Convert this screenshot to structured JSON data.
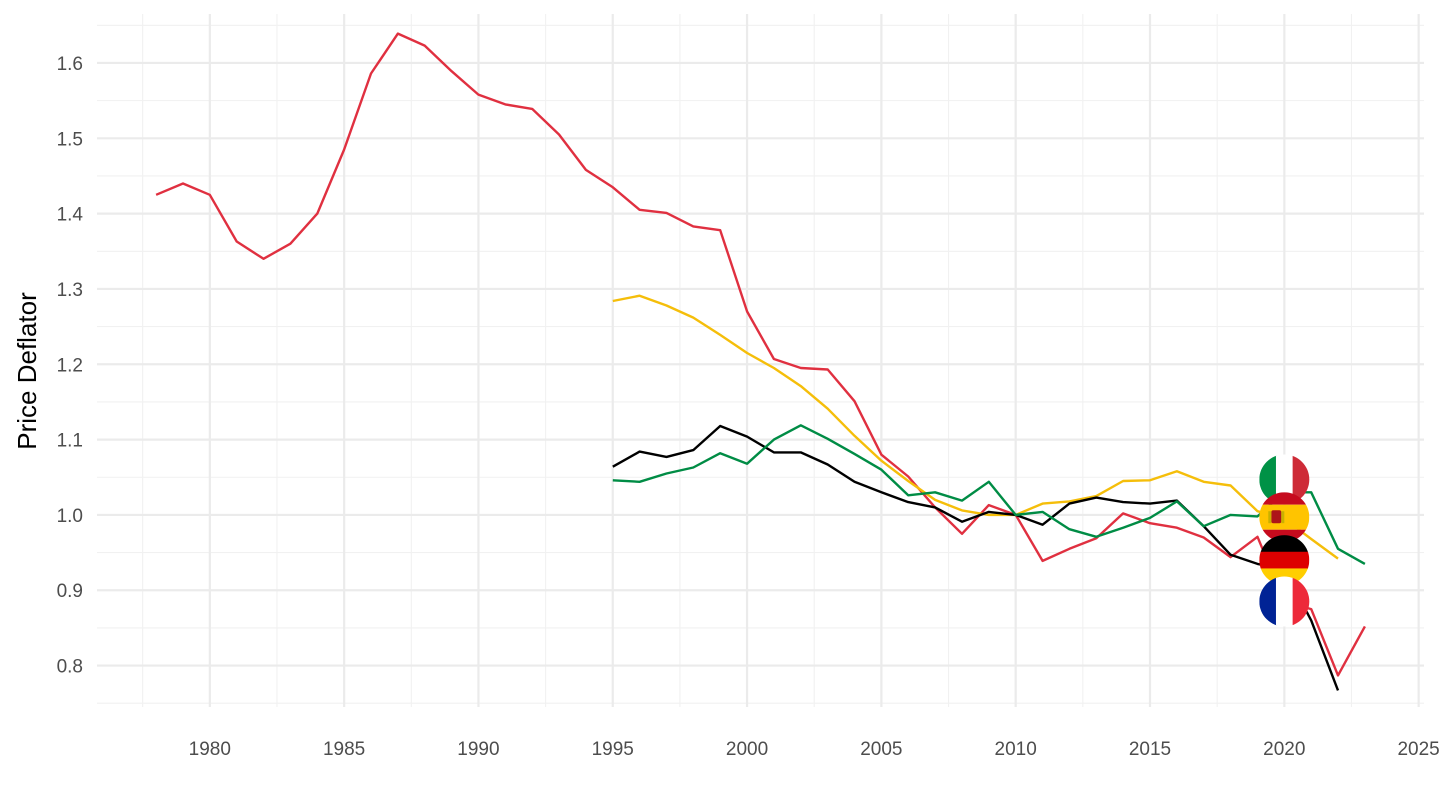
{
  "chart_data": {
    "type": "line",
    "title": "",
    "xlabel": "",
    "ylabel": "Price Deflator",
    "xlim": [
      1975.8,
      2025.2
    ],
    "ylim": [
      0.745,
      1.665
    ],
    "x_ticks": [
      1980,
      1985,
      1990,
      1995,
      2000,
      2005,
      2010,
      2015,
      2020,
      2025
    ],
    "x_tick_labels": [
      "1980",
      "1985",
      "1990",
      "1995",
      "2000",
      "2005",
      "2010",
      "2015",
      "2020",
      "2025"
    ],
    "y_ticks": [
      0.8,
      0.9,
      1.0,
      1.1,
      1.2,
      1.3,
      1.4,
      1.5,
      1.6
    ],
    "y_tick_labels": [
      "0.8",
      "0.9",
      "1.0",
      "1.1",
      "1.2",
      "1.3",
      "1.4",
      "1.5",
      "1.6"
    ],
    "grid": true,
    "legend": "flag icons placed at the end of each line near 2020",
    "series": [
      {
        "color": "#E03040",
        "flag": "france-flag",
        "x": [
          1978,
          1979,
          1980,
          1981,
          1982,
          1983,
          1984,
          1985,
          1986,
          1987,
          1988,
          1989,
          1990,
          1991,
          1992,
          1993,
          1994,
          1995,
          1996,
          1997,
          1998,
          1999,
          2000,
          2001,
          2002,
          2003,
          2004,
          2005,
          2006,
          2007,
          2008,
          2009,
          2010,
          2011,
          2012,
          2013,
          2014,
          2015,
          2016,
          2017,
          2018,
          2019,
          2020,
          2021,
          2022,
          2023
        ],
        "values": [
          1.425,
          1.44,
          1.425,
          1.363,
          1.34,
          1.36,
          1.4,
          1.485,
          1.586,
          1.639,
          1.623,
          1.589,
          1.558,
          1.545,
          1.539,
          1.505,
          1.458,
          1.435,
          1.405,
          1.401,
          1.383,
          1.378,
          1.27,
          1.207,
          1.195,
          1.193,
          1.151,
          1.08,
          1.051,
          1.01,
          0.975,
          1.013,
          1.0,
          0.939,
          0.955,
          0.969,
          1.002,
          0.989,
          0.983,
          0.97,
          0.944,
          0.971,
          0.885,
          0.875,
          0.787,
          0.852
        ]
      },
      {
        "color": "#F5BE0A",
        "flag": "spain-flag",
        "x": [
          1995,
          1996,
          1997,
          1998,
          1999,
          2000,
          2001,
          2002,
          2003,
          2004,
          2005,
          2006,
          2007,
          2008,
          2009,
          2010,
          2011,
          2012,
          2013,
          2014,
          2015,
          2016,
          2017,
          2018,
          2019,
          2020,
          2021,
          2022
        ],
        "values": [
          1.284,
          1.291,
          1.278,
          1.262,
          1.239,
          1.215,
          1.195,
          1.171,
          1.141,
          1.105,
          1.072,
          1.045,
          1.02,
          1.006,
          1.0,
          1.0,
          1.015,
          1.018,
          1.025,
          1.045,
          1.046,
          1.058,
          1.044,
          1.039,
          1.005,
          0.995,
          0.968,
          0.942
        ]
      },
      {
        "color": "#000000",
        "flag": "germany-flag",
        "x": [
          1995,
          1996,
          1997,
          1998,
          1999,
          2000,
          2001,
          2002,
          2003,
          2004,
          2005,
          2006,
          2007,
          2008,
          2009,
          2010,
          2011,
          2012,
          2013,
          2014,
          2015,
          2016,
          2017,
          2018,
          2019,
          2020,
          2021,
          2022
        ],
        "values": [
          1.064,
          1.084,
          1.077,
          1.086,
          1.118,
          1.104,
          1.083,
          1.083,
          1.067,
          1.044,
          1.03,
          1.017,
          1.01,
          0.991,
          1.004,
          1.0,
          0.987,
          1.015,
          1.023,
          1.017,
          1.015,
          1.019,
          0.985,
          0.947,
          0.935,
          0.928,
          0.86,
          0.767
        ]
      },
      {
        "color": "#008C45",
        "flag": "italy-flag",
        "x": [
          1995,
          1996,
          1997,
          1998,
          1999,
          2000,
          2001,
          2002,
          2003,
          2004,
          2005,
          2006,
          2007,
          2008,
          2009,
          2010,
          2011,
          2012,
          2013,
          2014,
          2015,
          2016,
          2017,
          2018,
          2019,
          2020,
          2021,
          2022,
          2023
        ],
        "values": [
          1.046,
          1.044,
          1.055,
          1.063,
          1.082,
          1.068,
          1.1,
          1.119,
          1.101,
          1.081,
          1.06,
          1.026,
          1.03,
          1.019,
          1.044,
          1.0,
          1.004,
          0.981,
          0.971,
          0.983,
          0.996,
          1.018,
          0.985,
          1.0,
          0.998,
          1.03,
          1.03,
          0.955,
          0.935
        ]
      }
    ],
    "flag_markers": [
      {
        "name": "italy-flag",
        "x": 2020,
        "y": 1.047
      },
      {
        "name": "spain-flag",
        "x": 2020,
        "y": 0.997
      },
      {
        "name": "germany-flag",
        "x": 2020,
        "y": 0.94
      },
      {
        "name": "france-flag",
        "x": 2020,
        "y": 0.885
      }
    ]
  }
}
